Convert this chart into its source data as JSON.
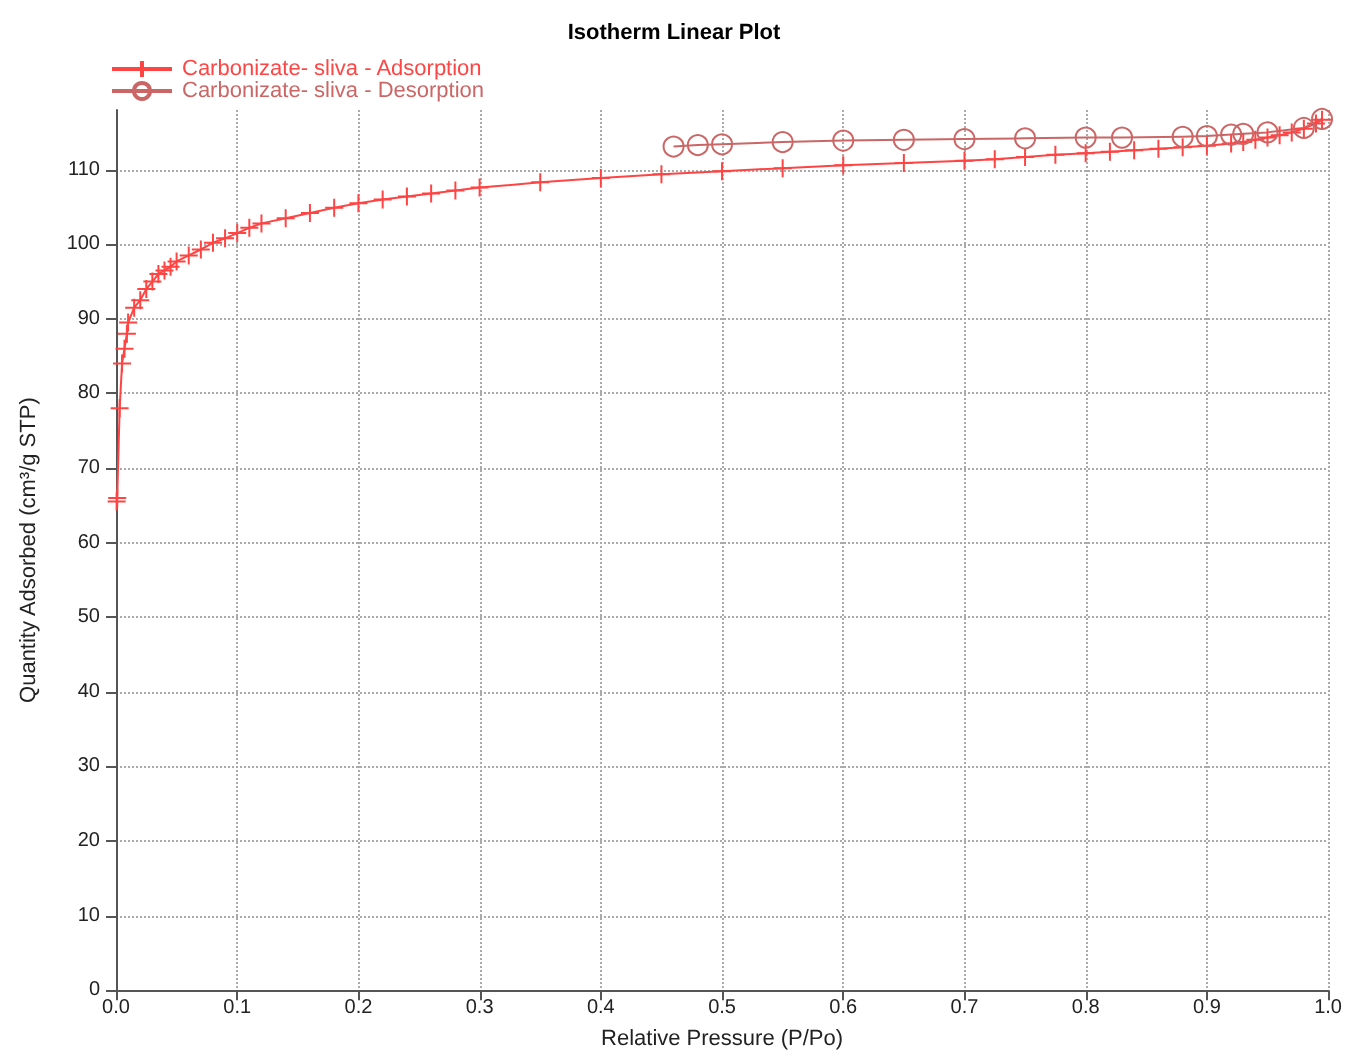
{
  "chart_data": {
    "type": "line",
    "title": "Isotherm Linear Plot",
    "xlabel": "Relative Pressure (P/Po)",
    "ylabel": "Quantity Adsorbed (cm³/g STP)",
    "xlim": [
      0,
      1
    ],
    "xticks": [
      {
        "value": 0,
        "label": "0.0"
      },
      {
        "value": 0.1,
        "label": "0.1"
      },
      {
        "value": 0.2,
        "label": "0.2"
      },
      {
        "value": 0.3,
        "label": "0.3"
      },
      {
        "value": 0.4,
        "label": "0.4"
      },
      {
        "value": 0.5,
        "label": "0.5"
      },
      {
        "value": 0.6,
        "label": "0.6"
      },
      {
        "value": 0.7,
        "label": "0.7"
      },
      {
        "value": 0.8,
        "label": "0.8"
      },
      {
        "value": 0.9,
        "label": "0.9"
      },
      {
        "value": 1,
        "label": "1.0"
      }
    ],
    "ylim": [
      0,
      118
    ],
    "yticks": [
      0,
      10,
      20,
      30,
      40,
      50,
      60,
      70,
      80,
      90,
      100,
      110
    ],
    "grid": true,
    "legend": "top left",
    "line_style": "solid",
    "series": [
      {
        "name": "Carbonizate- sliva - Adsorption",
        "color": "#ff4444",
        "marker": "cross",
        "x": [
          0.0005,
          0.001,
          0.003,
          0.005,
          0.007,
          0.009,
          0.01,
          0.015,
          0.02,
          0.025,
          0.03,
          0.035,
          0.04,
          0.045,
          0.05,
          0.06,
          0.07,
          0.08,
          0.09,
          0.1,
          0.11,
          0.12,
          0.14,
          0.16,
          0.18,
          0.2,
          0.22,
          0.24,
          0.26,
          0.28,
          0.3,
          0.35,
          0.4,
          0.45,
          0.5,
          0.55,
          0.6,
          0.65,
          0.7,
          0.725,
          0.75,
          0.775,
          0.8,
          0.82,
          0.84,
          0.86,
          0.88,
          0.9,
          0.92,
          0.93,
          0.94,
          0.95,
          0.96,
          0.97,
          0.98,
          0.99,
          0.995
        ],
        "values": [
          65.5,
          66,
          78,
          84,
          86,
          88,
          89.5,
          91.5,
          92.5,
          94,
          95,
          96,
          96.5,
          97,
          97.7,
          98.5,
          99.3,
          100.2,
          100.8,
          101.5,
          102.2,
          102.8,
          103.5,
          104.2,
          104.9,
          105.5,
          106,
          106.4,
          106.8,
          107.2,
          107.6,
          108.3,
          108.9,
          109.4,
          109.8,
          110.2,
          110.6,
          110.9,
          111.2,
          111.4,
          111.7,
          112,
          112.2,
          112.4,
          112.6,
          112.8,
          113,
          113.2,
          113.5,
          113.7,
          114,
          114.3,
          114.6,
          115,
          115.5,
          116.2,
          116.7
        ]
      },
      {
        "name": "Carbonizate- sliva - Desorption",
        "color": "#cc6666",
        "marker": "circle",
        "x": [
          0.995,
          0.98,
          0.95,
          0.93,
          0.92,
          0.9,
          0.88,
          0.83,
          0.8,
          0.75,
          0.7,
          0.65,
          0.6,
          0.55,
          0.5,
          0.48,
          0.46
        ],
        "values": [
          116.8,
          115.6,
          115,
          114.8,
          114.7,
          114.5,
          114.4,
          114.3,
          114.3,
          114.2,
          114.1,
          114,
          113.9,
          113.7,
          113.4,
          113.3,
          113.1
        ]
      }
    ]
  }
}
